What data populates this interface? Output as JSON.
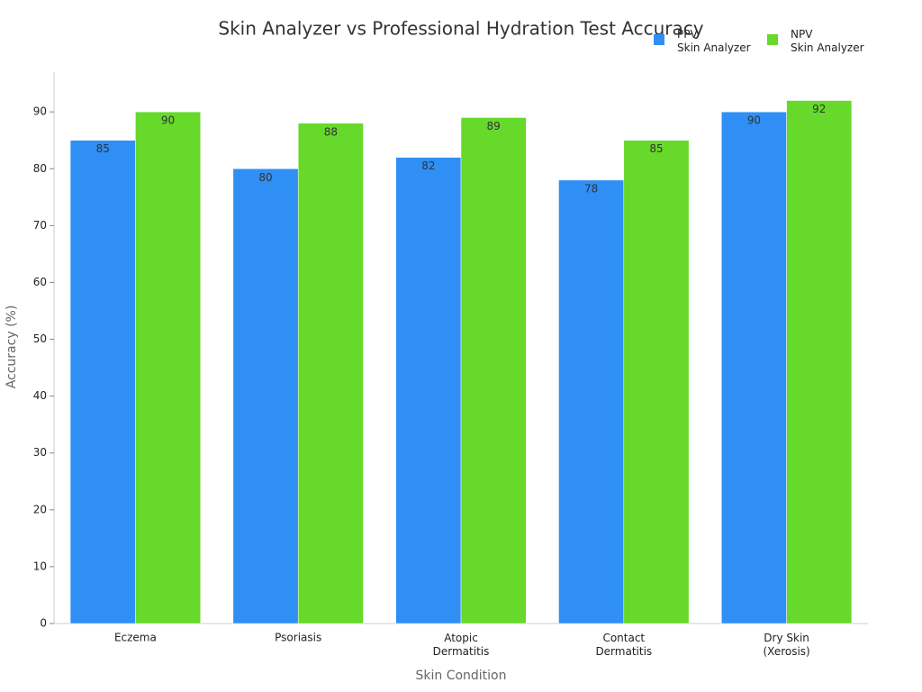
{
  "chart_data": {
    "type": "bar",
    "title": "Skin Analyzer vs Professional Hydration Test Accuracy",
    "x_label": "Skin Condition",
    "y_label": "Accuracy (%)",
    "categories": [
      "Eczema",
      "Psoriasis",
      "Atopic\nDermatitis",
      "Contact\nDermatitis",
      "Dry Skin\n(Xerosis)"
    ],
    "series": [
      {
        "name": "PPV\nSkin Analyzer",
        "color": "#2f8ff5",
        "values": [
          85,
          80,
          82,
          78,
          90
        ]
      },
      {
        "name": "NPV\nSkin Analyzer",
        "color": "#66d92a",
        "values": [
          90,
          88,
          89,
          85,
          92
        ]
      }
    ],
    "ylim": [
      0,
      97
    ],
    "yticks": [
      0,
      10,
      20,
      30,
      40,
      50,
      60,
      70,
      80,
      90
    ]
  }
}
